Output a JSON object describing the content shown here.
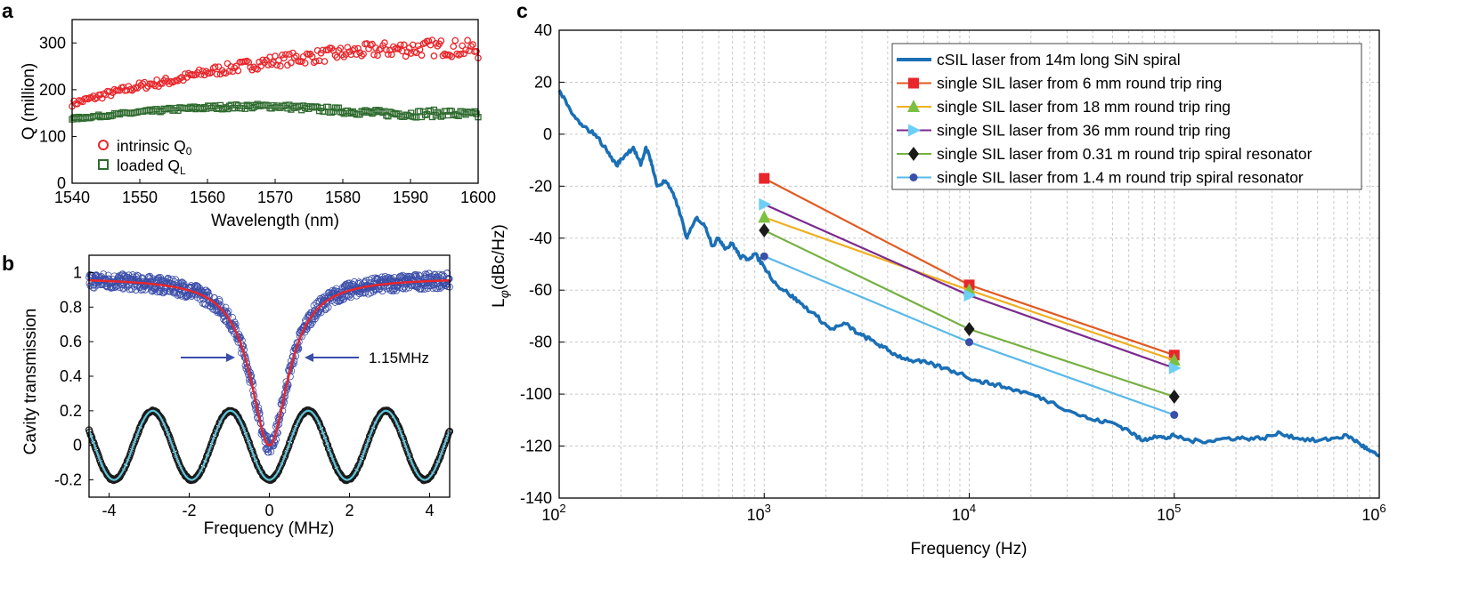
{
  "chart_data": [
    {
      "panel": "a",
      "type": "scatter",
      "xlabel": "Wavelength (nm)",
      "ylabel": "Q (million)",
      "xlim": [
        1540,
        1600
      ],
      "ylim": [
        0,
        350
      ],
      "xticks": [
        1540,
        1550,
        1560,
        1570,
        1580,
        1590,
        1600
      ],
      "yticks": [
        0,
        100,
        200,
        300
      ],
      "legend_position": "bottom-left",
      "series": [
        {
          "name": "intrinsic Q",
          "sub": "0",
          "marker": "circle",
          "color": "#e8262b",
          "trend_x": [
            1540,
            1545,
            1550,
            1555,
            1560,
            1565,
            1570,
            1575,
            1580,
            1585,
            1590,
            1595,
            1600
          ],
          "trend_y": [
            170,
            190,
            208,
            220,
            238,
            250,
            262,
            270,
            278,
            285,
            288,
            290,
            285
          ],
          "scatter_spread": 28
        },
        {
          "name": "loaded Q",
          "sub": "L",
          "marker": "square",
          "color": "#2f6b2f",
          "trend_x": [
            1540,
            1545,
            1550,
            1555,
            1560,
            1565,
            1570,
            1575,
            1580,
            1585,
            1590,
            1595,
            1600
          ],
          "trend_y": [
            138,
            145,
            152,
            158,
            162,
            164,
            165,
            160,
            155,
            150,
            148,
            150,
            145
          ],
          "scatter_spread": 12
        }
      ]
    },
    {
      "panel": "b",
      "type": "line",
      "xlabel": "Frequency (MHz)",
      "ylabel": "Cavity transmission",
      "xlim": [
        -4.5,
        4.5
      ],
      "ylim": [
        -0.3,
        1.1
      ],
      "xticks": [
        -4,
        -2,
        0,
        2,
        4
      ],
      "yticks": [
        -0.2,
        0,
        0.2,
        0.4,
        0.6,
        0.8,
        1
      ],
      "lorentzian": {
        "center": 0,
        "fwhm": 1.15,
        "baseline": 0.97,
        "min": 0.0
      },
      "sinusoid": {
        "amplitude": 0.2,
        "period": 1.94,
        "phase_peak_at": 0.97
      },
      "fit_color": "#e8262b",
      "data_color": "#3b4ea8",
      "ref_data_color": "#1a1a1a",
      "ref_fit_color": "#5ec4d8",
      "annotation": "1.15MHz"
    },
    {
      "panel": "c",
      "type": "line",
      "xscale": "log",
      "xlabel": "Frequency (Hz)",
      "ylabel_main": "L",
      "ylabel_sub": "φ",
      "ylabel_rest": "(dBc/Hz)",
      "xlim": [
        100,
        1000000
      ],
      "ylim": [
        -140,
        40
      ],
      "xtick_bases": [
        "10",
        "10",
        "10",
        "10",
        "10"
      ],
      "xtick_exps": [
        "2",
        "3",
        "4",
        "5",
        "6"
      ],
      "xticks": [
        100,
        1000,
        10000,
        100000,
        1000000
      ],
      "yticks": [
        40,
        20,
        0,
        -20,
        -40,
        -60,
        -80,
        -100,
        -120,
        -140
      ],
      "grid": true,
      "legend_position": "top-right",
      "series": [
        {
          "name": "cSIL laser from 14m long SiN spiral",
          "color": "#1a6fb5",
          "marker": "none",
          "x": [
            100,
            115,
            130,
            150,
            170,
            190,
            210,
            230,
            250,
            265,
            280,
            300,
            330,
            370,
            420,
            470,
            520,
            560,
            600,
            650,
            700,
            760,
            830,
            900,
            1000,
            1150,
            1300,
            1500,
            1800,
            2100,
            2500,
            2900,
            3300,
            3800,
            4400,
            5200,
            6200,
            7500,
            9000,
            11000,
            13000,
            16000,
            20000,
            25000,
            32000,
            40000,
            50000,
            60000,
            70000,
            80000,
            90000,
            100000,
            120000,
            150000,
            180000,
            220000,
            270000,
            330000,
            400000,
            500000,
            600000,
            700000,
            800000,
            900000,
            1000000
          ],
          "y": [
            17,
            8,
            3,
            0,
            -6,
            -12,
            -8,
            -5,
            -12,
            -5,
            -10,
            -20,
            -18,
            -25,
            -40,
            -32,
            -36,
            -43,
            -40,
            -44,
            -42,
            -47,
            -48,
            -46,
            -51,
            -58,
            -61,
            -65,
            -70,
            -75,
            -73,
            -77,
            -79,
            -82,
            -85,
            -87,
            -88,
            -90,
            -92,
            -95,
            -96,
            -98,
            -100,
            -103,
            -107,
            -110,
            -111,
            -114,
            -118,
            -116,
            -117,
            -116,
            -118,
            -118,
            -117,
            -117,
            -117,
            -115,
            -117,
            -118,
            -117,
            -116,
            -119,
            -122,
            -124
          ]
        },
        {
          "name": "single SIL laser from 6 mm round trip ring",
          "color": "#e05a24",
          "marker": "square",
          "marker_color": "#e8262b",
          "x": [
            1000,
            10000,
            100000
          ],
          "y": [
            -17,
            -58,
            -85
          ]
        },
        {
          "name": "single SIL laser from 18 mm round trip ring",
          "color": "#efb021",
          "marker": "triangle",
          "marker_color": "#7ac143",
          "x": [
            1000,
            10000,
            100000
          ],
          "y": [
            -32,
            -60,
            -87
          ]
        },
        {
          "name": "single SIL laser from 36 mm round trip ring",
          "color": "#7b2a8e",
          "marker": "triangle-right",
          "marker_color": "#6dcff6",
          "x": [
            1000,
            10000,
            100000
          ],
          "y": [
            -27,
            -62,
            -90
          ]
        },
        {
          "name": "single SIL laser from 0.31 m round trip spiral resonator",
          "color": "#76b043",
          "marker": "diamond",
          "marker_color": "#1a1a1a",
          "x": [
            1000,
            10000,
            100000
          ],
          "y": [
            -37,
            -75,
            -101
          ]
        },
        {
          "name": "single SIL laser from 1.4 m round trip spiral resonator",
          "color": "#5ab9e8",
          "marker": "circle",
          "marker_color": "#3b4ea8",
          "x": [
            1000,
            10000,
            100000
          ],
          "y": [
            -47,
            -80,
            -108
          ]
        }
      ]
    }
  ]
}
